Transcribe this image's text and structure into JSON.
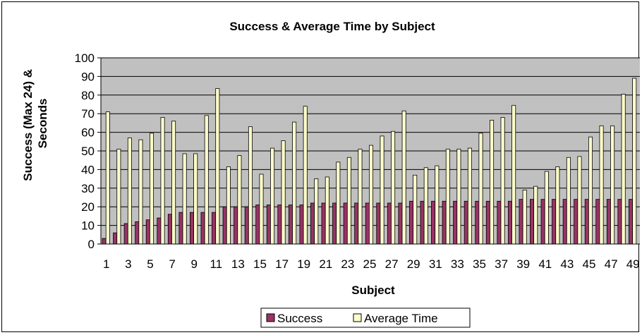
{
  "chart_data": {
    "type": "bar",
    "title": "Success & Average Time by Subject",
    "xlabel": "Subject",
    "ylabel_lines": [
      "Success (Max 24) &",
      "Seconds"
    ],
    "ylim": [
      0,
      100
    ],
    "yticks": [
      0,
      10,
      20,
      30,
      40,
      50,
      60,
      70,
      80,
      90,
      100
    ],
    "grid": true,
    "legend": "bottom",
    "plot_bg": "#c0c0c0",
    "categories": [
      1,
      2,
      3,
      4,
      5,
      6,
      7,
      8,
      9,
      10,
      11,
      12,
      13,
      14,
      15,
      16,
      17,
      18,
      19,
      20,
      21,
      22,
      23,
      24,
      25,
      26,
      27,
      28,
      29,
      30,
      31,
      32,
      33,
      34,
      35,
      36,
      37,
      38,
      39,
      40,
      41,
      42,
      43,
      44,
      45,
      46,
      47,
      48,
      49
    ],
    "x_tick_labels": [
      "1",
      "3",
      "5",
      "7",
      "9",
      "11",
      "13",
      "15",
      "17",
      "19",
      "21",
      "23",
      "25",
      "27",
      "29",
      "31",
      "33",
      "35",
      "37",
      "39",
      "41",
      "43",
      "45",
      "47",
      "49"
    ],
    "series": [
      {
        "name": "Success",
        "color": "#993366",
        "values": [
          3,
          6,
          11,
          12,
          13,
          14,
          16,
          17,
          17,
          17,
          17,
          20,
          20,
          20,
          21,
          21,
          21,
          21,
          21,
          22,
          22,
          22,
          22,
          22,
          22,
          22,
          22,
          22,
          23,
          23,
          23,
          23,
          23,
          23,
          23,
          23,
          23,
          23,
          24,
          24,
          24,
          24,
          24,
          24,
          24,
          24,
          24,
          24,
          24
        ]
      },
      {
        "name": "Average Time",
        "color": "#ffffcc",
        "values": [
          71,
          51,
          57,
          56,
          59.5,
          68,
          66,
          48.5,
          48.5,
          69,
          83.5,
          41.5,
          47.5,
          63,
          37.5,
          51.5,
          55.5,
          65.5,
          74,
          35,
          36,
          44,
          46.5,
          51,
          53,
          58,
          60.5,
          71.5,
          37,
          41,
          42,
          51,
          51,
          51.5,
          59.5,
          66.5,
          68,
          74.5,
          29,
          31,
          39,
          41.5,
          46.5,
          47,
          57.5,
          63.5,
          63.5,
          80.5,
          89
        ]
      }
    ]
  }
}
